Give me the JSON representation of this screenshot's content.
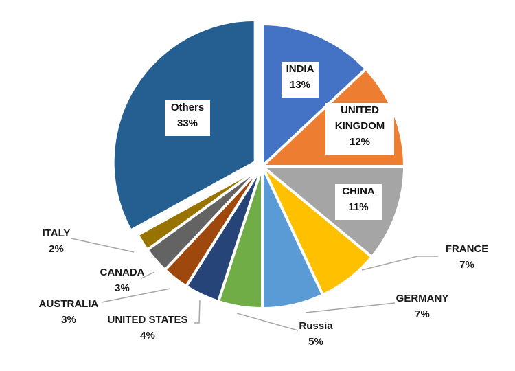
{
  "chart_data": {
    "type": "pie",
    "title": "",
    "slices": [
      {
        "label": "INDIA",
        "value": 13,
        "value_label": "13%",
        "color": "#4472C4"
      },
      {
        "label": "UNITED KINGDOM",
        "value": 12,
        "value_label": "12%",
        "color": "#ED7D31"
      },
      {
        "label": "CHINA",
        "value": 11,
        "value_label": "11%",
        "color": "#A5A5A5"
      },
      {
        "label": "FRANCE",
        "value": 7,
        "value_label": "7%",
        "color": "#FFC000"
      },
      {
        "label": "GERMANY",
        "value": 7,
        "value_label": "7%",
        "color": "#5B9BD5"
      },
      {
        "label": "Russia",
        "value": 5,
        "value_label": "5%",
        "color": "#70AD47"
      },
      {
        "label": "UNITED STATES",
        "value": 4,
        "value_label": "4%",
        "color": "#264478"
      },
      {
        "label": "AUSTRALIA",
        "value": 3,
        "value_label": "3%",
        "color": "#9E480E"
      },
      {
        "label": "CANADA",
        "value": 3,
        "value_label": "3%",
        "color": "#636363"
      },
      {
        "label": "ITALY",
        "value": 2,
        "value_label": "2%",
        "color": "#997300"
      },
      {
        "label": "Others",
        "value": 33,
        "value_label": "33%",
        "color": "#255E91"
      }
    ],
    "start_angle": "12 o'clock, clockwise",
    "exploded_slice": "Others"
  }
}
